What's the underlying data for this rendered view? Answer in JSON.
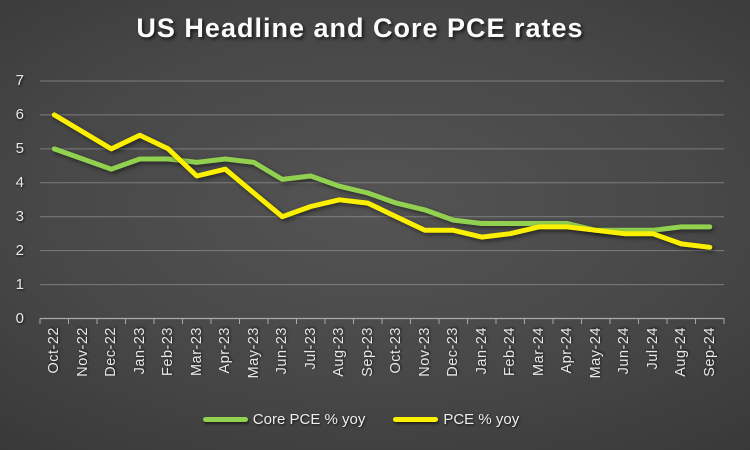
{
  "chart_data": {
    "type": "line",
    "title": "US Headline and Core PCE rates",
    "categories": [
      "Oct-22",
      "Nov-22",
      "Dec-22",
      "Jan-23",
      "Feb-23",
      "Mar-23",
      "Apr-23",
      "May-23",
      "Jun-23",
      "Jul-23",
      "Aug-23",
      "Sep-23",
      "Oct-23",
      "Nov-23",
      "Dec-23",
      "Jan-24",
      "Feb-24",
      "Mar-24",
      "Apr-24",
      "May-24",
      "Jun-24",
      "Jul-24",
      "Aug-24",
      "Sep-24"
    ],
    "series": [
      {
        "name": "Core PCE % yoy",
        "color": "#92d050",
        "values": [
          5.0,
          4.7,
          4.4,
          4.7,
          4.7,
          4.6,
          4.7,
          4.6,
          4.1,
          4.2,
          3.9,
          3.7,
          3.4,
          3.2,
          2.9,
          2.8,
          2.8,
          2.8,
          2.8,
          2.6,
          2.6,
          2.6,
          2.7,
          2.7
        ]
      },
      {
        "name": "PCE % yoy",
        "color": "#fcf002",
        "values": [
          6.0,
          5.5,
          5.0,
          5.4,
          5.0,
          4.2,
          4.4,
          3.7,
          3.0,
          3.3,
          3.5,
          3.4,
          3.0,
          2.6,
          2.6,
          2.4,
          2.5,
          2.7,
          2.7,
          2.6,
          2.5,
          2.5,
          2.2,
          2.1
        ]
      }
    ],
    "xlabel": "",
    "ylabel": "",
    "ylim": [
      0,
      7
    ],
    "yticks": [
      0,
      1,
      2,
      3,
      4,
      5,
      6,
      7
    ],
    "grid": "horizontal",
    "grid_color": "#8f8f8f",
    "axis_color": "#a9a9a9",
    "text_color": "#e8e8e8",
    "legend_position": "bottom"
  }
}
